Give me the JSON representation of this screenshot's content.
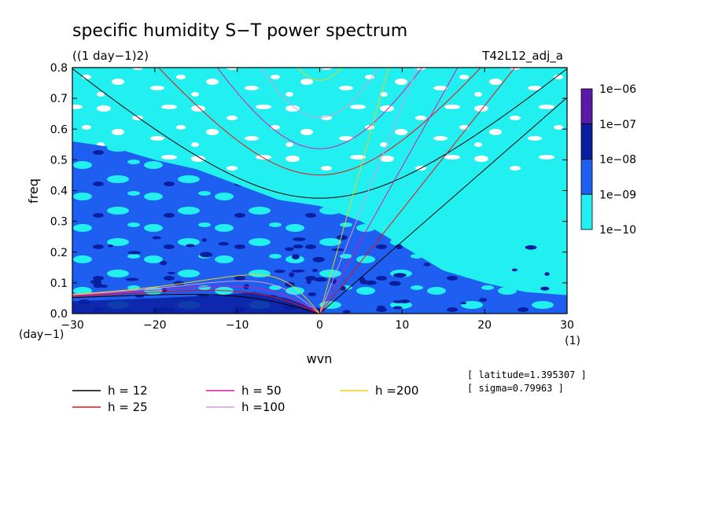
{
  "chart_data": {
    "type": "heatmap",
    "title": "specific humidity S−T power spectrum",
    "subtitle": "((1 day−1)2)",
    "run_label": "T42L12_adj_a",
    "xlabel": "wvn",
    "ylabel": "freq",
    "x_unit": "(1)",
    "y_unit": "(day−1)",
    "xlim": [
      -30,
      30
    ],
    "ylim": [
      0,
      0.8
    ],
    "x_ticks": [
      -30,
      -20,
      -10,
      0,
      10,
      20,
      30
    ],
    "x_tick_labels": [
      "−30",
      "−20",
      "−10",
      "0",
      "10",
      "20",
      "30"
    ],
    "y_ticks": [
      0,
      0.1,
      0.2,
      0.3,
      0.4,
      0.5,
      0.6,
      0.7,
      0.8
    ],
    "y_tick_labels": [
      "0.0",
      "0.1",
      "0.2",
      "0.3",
      "0.4",
      "0.5",
      "0.6",
      "0.7",
      "0.8"
    ],
    "colorbar": {
      "levels": [
        "1e−06",
        "1e−07",
        "1e−08",
        "1e−09",
        "1e−10"
      ],
      "colors": [
        "#5a1aa8",
        "#0a1ea0",
        "#1e5ef0",
        "#22f0f0"
      ]
    },
    "background_color": "#ffffff",
    "legend": [
      {
        "label": "h = 12",
        "color": "#000000",
        "h": 12
      },
      {
        "label": "h = 25",
        "color": "#e81010",
        "h": 25
      },
      {
        "label": "h = 50",
        "color": "#d81aa8",
        "h": 50
      },
      {
        "label": "h =100",
        "color": "#d89ae0",
        "h": 100
      },
      {
        "label": "h =200",
        "color": "#f0d010",
        "h": 200
      }
    ],
    "info": [
      "[ latitude=1.395307 ]",
      "[ sigma=0.79963 ]"
    ]
  }
}
